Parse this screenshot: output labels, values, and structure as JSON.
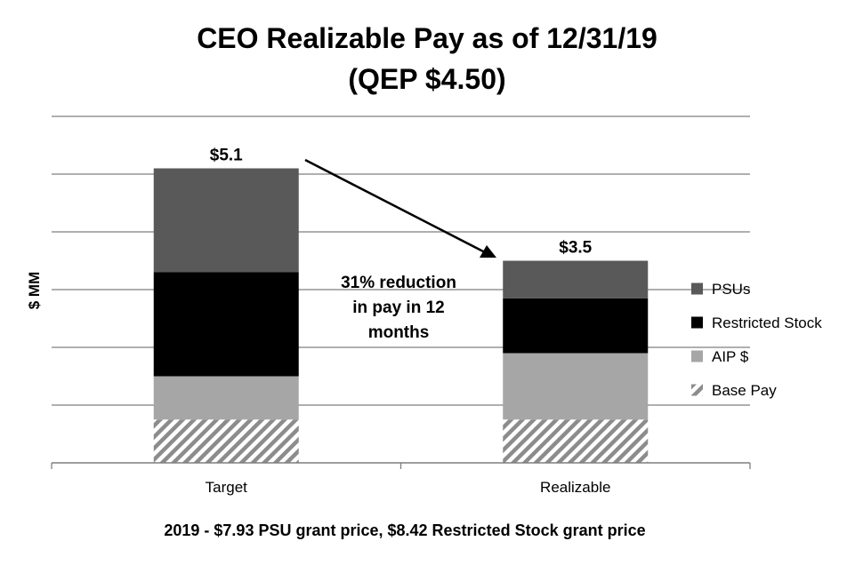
{
  "chart_data": {
    "type": "bar",
    "stacked": true,
    "title": "CEO Realizable Pay as of 12/31/19",
    "subtitle": "(QEP $4.50)",
    "ylabel": "$ MM",
    "xlabel": "",
    "categories": [
      "Target",
      "Realizable"
    ],
    "ylim": [
      0,
      6
    ],
    "grid": true,
    "series": [
      {
        "name": "Base Pay",
        "values": [
          0.75,
          0.75
        ],
        "color": "#8c8c8c",
        "pattern": "hatch"
      },
      {
        "name": "AIP $",
        "values": [
          0.75,
          1.15
        ],
        "color": "#a6a6a6",
        "pattern": "solid"
      },
      {
        "name": "Restricted Stock",
        "values": [
          1.8,
          0.95
        ],
        "color": "#000000",
        "pattern": "solid"
      },
      {
        "name": "PSUs",
        "values": [
          1.8,
          0.65
        ],
        "color": "#595959",
        "pattern": "solid"
      }
    ],
    "legend_order": [
      "PSUs",
      "Restricted Stock",
      "AIP $",
      "Base Pay"
    ],
    "legend_position": "right",
    "totals": [
      "$5.1",
      "$3.5"
    ],
    "annotation": [
      "31% reduction",
      "in pay in 12",
      "months"
    ],
    "footer": "2019 - $7.93 PSU grant price, $8.42 Restricted Stock grant price"
  }
}
